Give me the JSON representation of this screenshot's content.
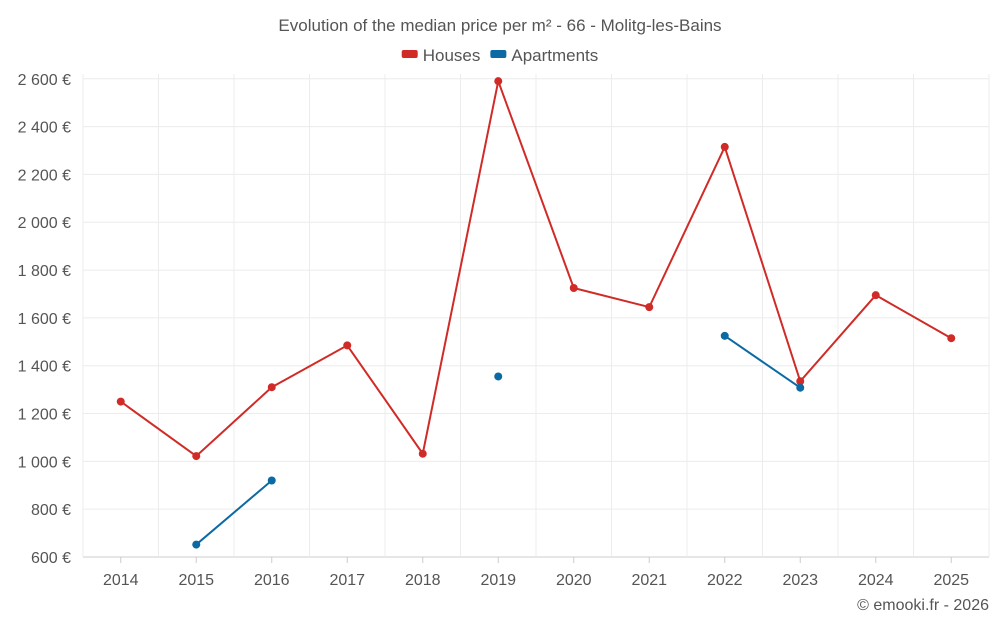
{
  "chart_data": {
    "type": "line",
    "title": "Evolution of the median price per m² - 66 - Molitg-les-Bains",
    "xlabel": "",
    "ylabel": "",
    "categories": [
      "2014",
      "2015",
      "2016",
      "2017",
      "2018",
      "2019",
      "2020",
      "2021",
      "2022",
      "2023",
      "2024",
      "2025"
    ],
    "y_ticks": [
      "600 €",
      "800 €",
      "1 000 €",
      "1 200 €",
      "1 400 €",
      "1 600 €",
      "1 800 €",
      "2 000 €",
      "2 200 €",
      "2 400 €",
      "2 600 €"
    ],
    "ylim": [
      600,
      2620
    ],
    "grid": true,
    "legend_position": "top-center",
    "series": [
      {
        "name": "Houses",
        "color": "#d02b27",
        "values": [
          1250,
          1022,
          1310,
          1485,
          1032,
          2590,
          1725,
          1645,
          2315,
          1335,
          1695,
          1515
        ]
      },
      {
        "name": "Apartments",
        "color": "#0b69a3",
        "values": [
          null,
          652,
          920,
          null,
          null,
          1355,
          null,
          null,
          1525,
          1308,
          null,
          null
        ]
      }
    ],
    "credit": "© emooki.fr - 2026"
  },
  "colors": {
    "text": "#555555",
    "grid": "#ececec",
    "axis": "#cccccc"
  }
}
